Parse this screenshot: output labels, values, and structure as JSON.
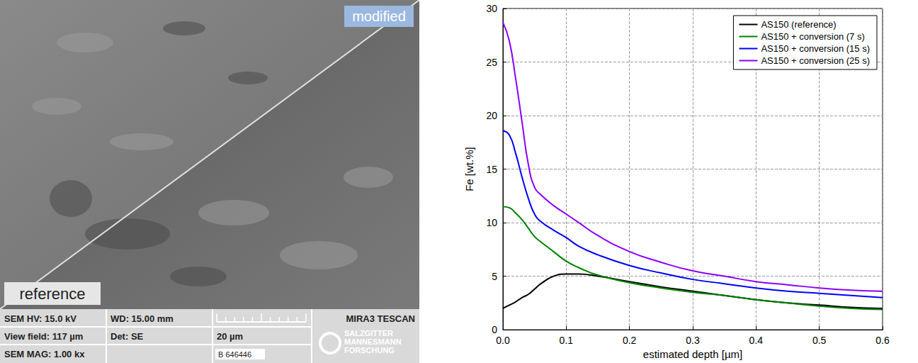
{
  "sem_image": {
    "labels": {
      "upper": "modified",
      "lower": "reference"
    },
    "info_bar": [
      [
        "SEM HV: 15.0 kV",
        "WD: 15.00 mm",
        "MIRA3 TESCAN"
      ],
      [
        "View field: 117 µm",
        "Det: SE",
        "20 µm"
      ],
      [
        "SEM MAG: 1.00 kx",
        "B 646446"
      ]
    ],
    "logo": [
      "SALZGITTER",
      "MANNESMANN",
      "FORSCHUNG"
    ]
  },
  "chart_data": {
    "type": "line",
    "x_label": "estimated depth [µm]",
    "y_label": "Fe [wt.%]",
    "x": [
      0,
      0.01,
      0.02,
      0.03,
      0.04,
      0.05,
      0.06,
      0.08,
      0.1,
      0.12,
      0.15,
      0.2,
      0.25,
      0.3,
      0.35,
      0.4,
      0.45,
      0.5,
      0.55,
      0.6
    ],
    "series": [
      {
        "name": "AS150 (reference)",
        "color": "#000000",
        "values": [
          2.0,
          2.3,
          2.6,
          3.0,
          3.3,
          3.8,
          4.3,
          5.0,
          5.2,
          5.2,
          5.0,
          4.5,
          4.0,
          3.6,
          3.2,
          2.8,
          2.5,
          2.3,
          2.1,
          2.0
        ]
      },
      {
        "name": "AS150 + conversion (7 s)",
        "color": "#008000",
        "values": [
          11.5,
          11.4,
          10.9,
          10.3,
          9.5,
          8.7,
          8.2,
          7.3,
          6.4,
          5.8,
          5.1,
          4.4,
          3.9,
          3.5,
          3.2,
          2.8,
          2.5,
          2.2,
          2.0,
          1.9
        ]
      },
      {
        "name": "AS150 + conversion (15 s)",
        "color": "#0000ff",
        "values": [
          18.6,
          18.2,
          16.5,
          14.3,
          12.3,
          10.8,
          10.1,
          9.3,
          8.6,
          7.8,
          7.0,
          6.0,
          5.3,
          4.7,
          4.3,
          3.9,
          3.6,
          3.4,
          3.2,
          3.0
        ]
      },
      {
        "name": "AS150 + conversion (25 s)",
        "color": "#8b00ff",
        "values": [
          28.7,
          27.0,
          23.5,
          19.5,
          15.5,
          13.3,
          12.6,
          11.6,
          10.8,
          10.0,
          8.8,
          7.3,
          6.3,
          5.5,
          5.0,
          4.5,
          4.2,
          3.9,
          3.7,
          3.6
        ]
      }
    ],
    "xlim": [
      0,
      0.6
    ],
    "xticks": [
      {
        "value": 0,
        "label": "0.0"
      },
      0.1,
      0.2,
      0.3,
      0.4,
      0.5,
      0.6
    ],
    "ylim": [
      0,
      30
    ],
    "yticks": [
      0,
      5,
      10,
      15,
      20,
      25,
      30
    ],
    "grid": true,
    "legend": "upper right"
  }
}
